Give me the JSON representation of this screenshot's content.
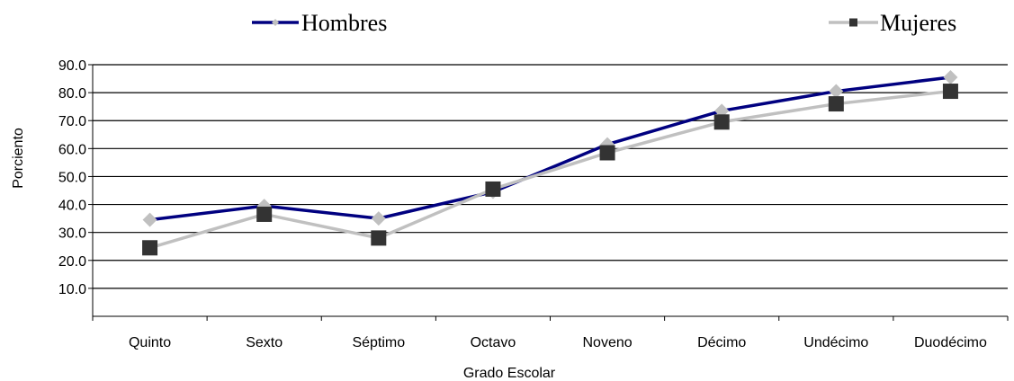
{
  "chart_data": {
    "type": "line",
    "xlabel": "Grado Escolar",
    "ylabel": "Porciento",
    "categories": [
      "Quinto",
      "Sexto",
      "Séptimo",
      "Octavo",
      "Noveno",
      "Décimo",
      "Undécimo",
      "Duodécimo"
    ],
    "ylim": [
      0,
      90
    ],
    "yticks": [
      "10.0",
      "20.0",
      "30.0",
      "40.0",
      "50.0",
      "60.0",
      "70.0",
      "80.0",
      "90.0"
    ],
    "grid": true,
    "legend_position": "top",
    "series": [
      {
        "name": "Hombres",
        "values": [
          34.5,
          39.5,
          35.0,
          44.5,
          61.5,
          73.5,
          80.5,
          85.5
        ],
        "line_color": "#000080",
        "marker": "diamond",
        "marker_color": "#c0c0c0"
      },
      {
        "name": "Mujeres",
        "values": [
          24.5,
          36.5,
          28.0,
          45.5,
          58.5,
          69.5,
          76.0,
          80.5
        ],
        "line_color": "#c0c0c0",
        "marker": "square",
        "marker_color": "#333333"
      }
    ]
  }
}
